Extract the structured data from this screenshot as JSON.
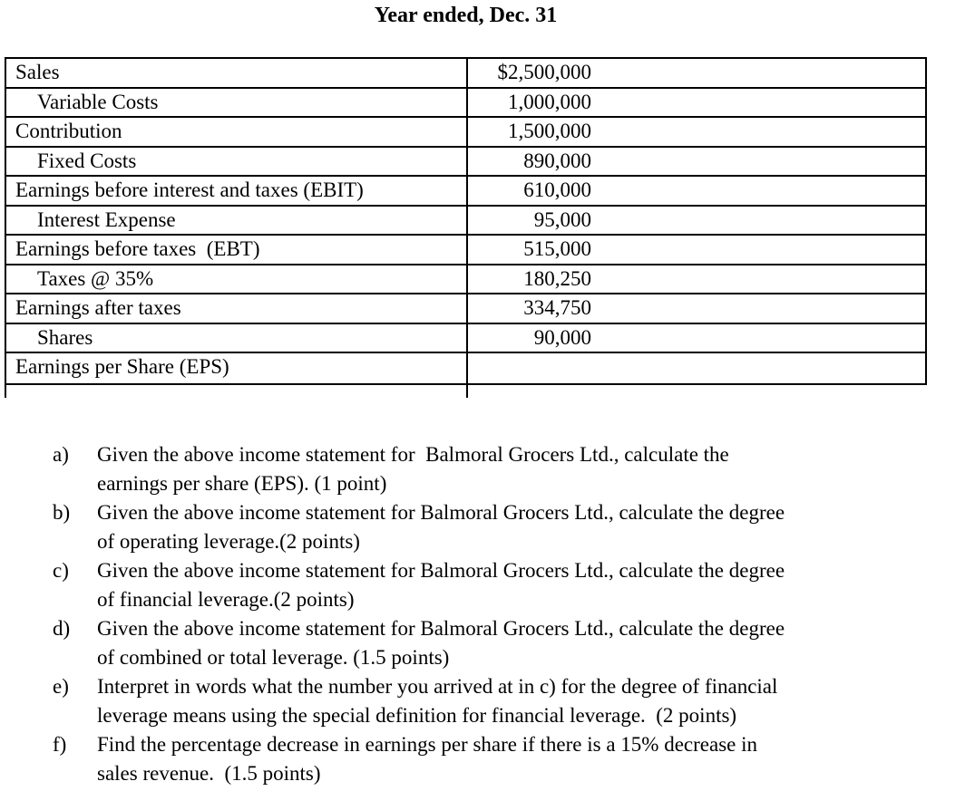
{
  "page": {
    "background_color": "#ffffff",
    "text_color": "#000000",
    "border_color": "#000000"
  },
  "title": "Year ended, Dec. 31",
  "income_statement": {
    "rows": [
      {
        "label": "Sales",
        "value": "$2,500,000",
        "indent": 0
      },
      {
        "label": "Variable Costs",
        "value": "1,000,000",
        "indent": 1
      },
      {
        "label": "Contribution",
        "value": "1,500,000",
        "indent": 0
      },
      {
        "label": "Fixed Costs",
        "value": "890,000",
        "indent": 1
      },
      {
        "label": "Earnings before interest and taxes (EBIT)",
        "value": "610,000",
        "indent": 0
      },
      {
        "label": "Interest Expense",
        "value": "95,000",
        "indent": 1
      },
      {
        "label": "Earnings before taxes  (EBT)",
        "value": "515,000",
        "indent": 0
      },
      {
        "label": "Taxes @ 35%",
        "value": "180,250",
        "indent": 1
      },
      {
        "label": "Earnings after taxes",
        "value": "334,750",
        "indent": 0
      },
      {
        "label": "Shares",
        "value": "90,000",
        "indent": 1
      },
      {
        "label": "Earnings per Share (EPS)",
        "value": "",
        "indent": 0
      }
    ]
  },
  "questions": [
    {
      "letter": "a)",
      "text": "Given the above income statement for  Balmoral Grocers Ltd., calculate the\nearnings per share (EPS). (1 point)"
    },
    {
      "letter": "b)",
      "text": "Given the above income statement for Balmoral Grocers Ltd., calculate the degree\nof operating leverage.(2 points)"
    },
    {
      "letter": "c)",
      "text": "Given the above income statement for Balmoral Grocers Ltd., calculate the degree\nof financial leverage.(2 points)"
    },
    {
      "letter": "d)",
      "text": "Given the above income statement for Balmoral Grocers Ltd., calculate the degree\nof combined or total leverage. (1.5 points)"
    },
    {
      "letter": "e)",
      "text": "Interpret in words what the number you arrived at in c) for the degree of financial\nleverage means using the special definition for financial leverage.  (2 points)"
    },
    {
      "letter": "f)",
      "text": "Find the percentage decrease in earnings per share if there is a 15% decrease in\nsales revenue.  (1.5 points)"
    }
  ]
}
